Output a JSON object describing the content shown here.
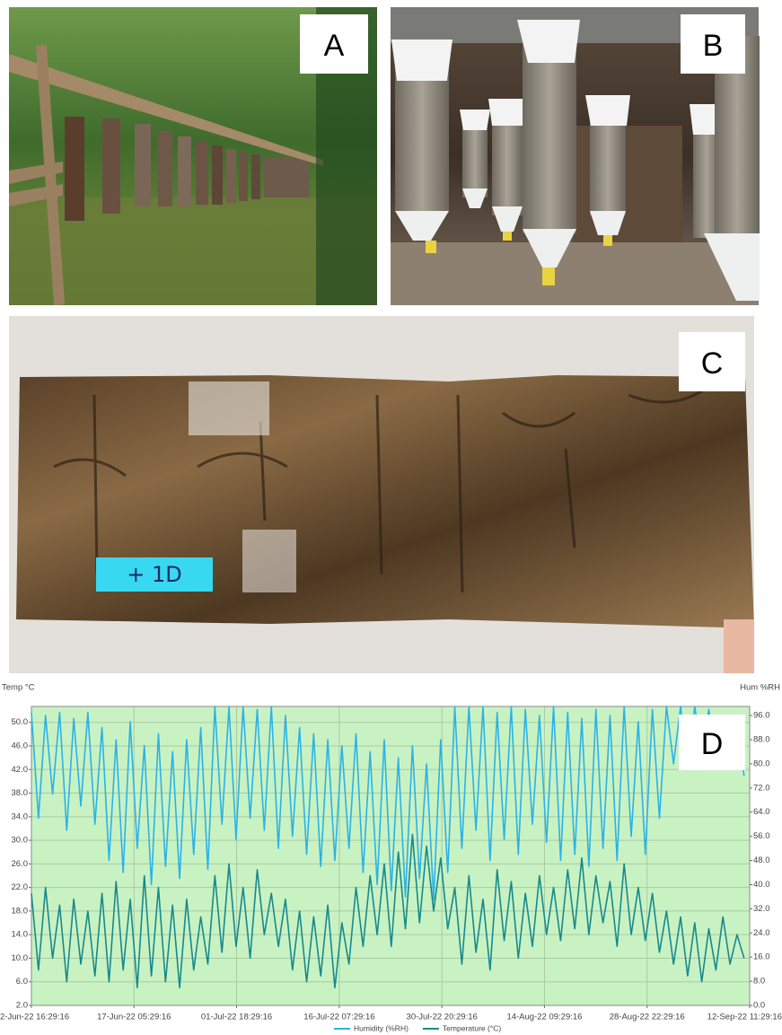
{
  "panels": [
    {
      "label": "A"
    },
    {
      "label": "B"
    },
    {
      "label": "C",
      "tag": "+ 1D"
    },
    {
      "label": "D"
    }
  ],
  "chart_data": {
    "type": "line",
    "y_label": "Temp °C",
    "y2_label": "Hum %RH",
    "grid": true,
    "legend": "bottom",
    "xlim": [
      0,
      101.79
    ],
    "xticks": [
      {
        "value": 0,
        "label": "2-Jun-22 16:29:16"
      },
      {
        "value": 14.54,
        "label": "17-Jun-22 05:29:16"
      },
      {
        "value": 29.08,
        "label": "01-Jul-22 18:29:16"
      },
      {
        "value": 43.63,
        "label": "16-Jul-22 07:29:16"
      },
      {
        "value": 58.17,
        "label": "30-Jul-22 20:29:16"
      },
      {
        "value": 72.71,
        "label": "14-Aug-22 09:29:16"
      },
      {
        "value": 87.25,
        "label": "28-Aug-22 22:29:16"
      },
      {
        "value": 101.79,
        "label": "12-Sep-22 11:29:16"
      }
    ],
    "ylim": [
      2,
      52.7
    ],
    "yticks": [
      {
        "value": 2,
        "label": "2.0"
      },
      {
        "value": 6,
        "label": "6.0"
      },
      {
        "value": 10,
        "label": "10.0"
      },
      {
        "value": 14,
        "label": "14.0"
      },
      {
        "value": 18,
        "label": "18.0"
      },
      {
        "value": 22,
        "label": "22.0"
      },
      {
        "value": 26,
        "label": "26.0"
      },
      {
        "value": 30,
        "label": "30.0"
      },
      {
        "value": 34,
        "label": "34.0"
      },
      {
        "value": 38,
        "label": "38.0"
      },
      {
        "value": 42,
        "label": "42.0"
      },
      {
        "value": 46,
        "label": "46.0"
      },
      {
        "value": 50,
        "label": "50.0"
      }
    ],
    "y2lim": [
      0,
      99
    ],
    "y2ticks": [
      {
        "value": 0,
        "label": "0.0"
      },
      {
        "value": 8,
        "label": "8.0"
      },
      {
        "value": 16,
        "label": "16.0"
      },
      {
        "value": 24,
        "label": "24.0"
      },
      {
        "value": 32,
        "label": "32.0"
      },
      {
        "value": 40,
        "label": "40.0"
      },
      {
        "value": 48,
        "label": "48.0"
      },
      {
        "value": 56,
        "label": "56.0"
      },
      {
        "value": 64,
        "label": "64.0"
      },
      {
        "value": 72,
        "label": "72.0"
      },
      {
        "value": 80,
        "label": "80.0"
      },
      {
        "value": 88,
        "label": "88.0"
      },
      {
        "value": 96,
        "label": "96.0"
      }
    ],
    "x": [
      0,
      1,
      2,
      3,
      4,
      5,
      6,
      7,
      8,
      9,
      10,
      11,
      12,
      13,
      14,
      15,
      16,
      17,
      18,
      19,
      20,
      21,
      22,
      23,
      24,
      25,
      26,
      27,
      28,
      29,
      30,
      31,
      32,
      33,
      34,
      35,
      36,
      37,
      38,
      39,
      40,
      41,
      42,
      43,
      44,
      45,
      46,
      47,
      48,
      49,
      50,
      51,
      52,
      53,
      54,
      55,
      56,
      57,
      58,
      59,
      60,
      61,
      62,
      63,
      64,
      65,
      66,
      67,
      68,
      69,
      70,
      71,
      72,
      73,
      74,
      75,
      76,
      77,
      78,
      79,
      80,
      81,
      82,
      83,
      84,
      85,
      86,
      87,
      88,
      89,
      90,
      91,
      92,
      93,
      94,
      95,
      96,
      97,
      98,
      99,
      100,
      101
    ],
    "series": [
      {
        "name": "Humidity (%RH)",
        "color": "#2bb3e6",
        "axis": "y2",
        "values": [
          97,
          62,
          96,
          70,
          97,
          58,
          95,
          66,
          97,
          60,
          92,
          48,
          88,
          44,
          94,
          52,
          86,
          40,
          90,
          46,
          84,
          42,
          88,
          50,
          92,
          45,
          99,
          60,
          99,
          55,
          99,
          62,
          98,
          58,
          99,
          52,
          96,
          56,
          92,
          50,
          90,
          46,
          88,
          48,
          86,
          52,
          90,
          44,
          84,
          40,
          88,
          38,
          82,
          36,
          86,
          42,
          80,
          35,
          88,
          44,
          99,
          52,
          99,
          58,
          99,
          48,
          97,
          55,
          99,
          50,
          98,
          60,
          96,
          54,
          99,
          48,
          97,
          50,
          95,
          46,
          98,
          52,
          96,
          48,
          99,
          56,
          94,
          50,
          98,
          62,
          99,
          80,
          99,
          78,
          99,
          84,
          98,
          80,
          96,
          82,
          92,
          76
        ]
      },
      {
        "name": "Temperature (°C)",
        "color": "#178a8c",
        "values": [
          21,
          8,
          22,
          10,
          19,
          6,
          20,
          9,
          18,
          7,
          21,
          6,
          23,
          8,
          20,
          5,
          24,
          7,
          22,
          6,
          19,
          5,
          20,
          8,
          17,
          9,
          24,
          11,
          26,
          12,
          22,
          10,
          25,
          14,
          21,
          12,
          20,
          8,
          18,
          6,
          17,
          7,
          19,
          5,
          16,
          9,
          22,
          12,
          24,
          14,
          26,
          12,
          28,
          15,
          31,
          16,
          29,
          18,
          27,
          15,
          22,
          9,
          24,
          11,
          20,
          8,
          25,
          13,
          23,
          10,
          21,
          12,
          24,
          14,
          22,
          13,
          25,
          15,
          27,
          14,
          24,
          16,
          23,
          12,
          26,
          14,
          22,
          13,
          21,
          11,
          18,
          9,
          17,
          7,
          16,
          6,
          15,
          8,
          17,
          9,
          14,
          10
        ]
      }
    ]
  }
}
